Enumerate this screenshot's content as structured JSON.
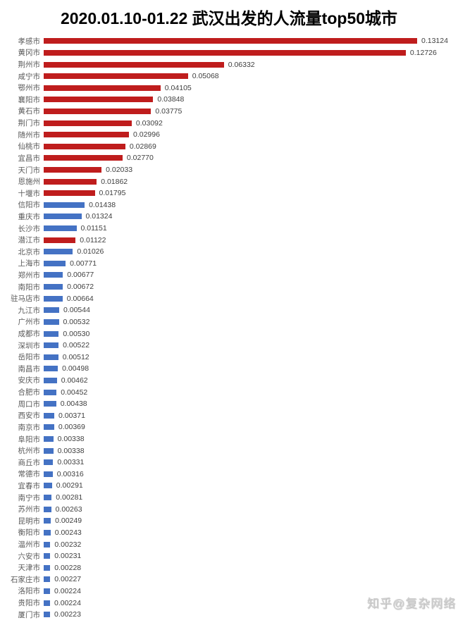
{
  "title": "2020.01.10-01.22 武汉出发的人流量top50城市",
  "watermark": "知乎@复杂网络",
  "colors": {
    "hubei_red": "#bf1d1d",
    "other_blue": "#4472c4",
    "category_label": "#595959",
    "value_label": "#404040",
    "title": "#000000",
    "background": "#ffffff"
  },
  "chart_data": {
    "type": "bar",
    "orientation": "horizontal",
    "title": "2020.01.10-01.22 武汉出发的人流量top50城市",
    "xlabel": "",
    "ylabel": "",
    "xlim": [
      0,
      0.14
    ],
    "grid": false,
    "legend": false,
    "value_decimals": 5,
    "categories": [
      "孝感市",
      "黄冈市",
      "荆州市",
      "咸宁市",
      "鄂州市",
      "襄阳市",
      "黄石市",
      "荆门市",
      "随州市",
      "仙桃市",
      "宜昌市",
      "天门市",
      "恩施州",
      "十堰市",
      "信阳市",
      "重庆市",
      "长沙市",
      "潜江市",
      "北京市",
      "上海市",
      "郑州市",
      "南阳市",
      "驻马店市",
      "九江市",
      "广州市",
      "成都市",
      "深圳市",
      "岳阳市",
      "南昌市",
      "安庆市",
      "合肥市",
      "周口市",
      "西安市",
      "南京市",
      "阜阳市",
      "杭州市",
      "商丘市",
      "常德市",
      "宜春市",
      "南宁市",
      "苏州市",
      "昆明市",
      "衡阳市",
      "温州市",
      "六安市",
      "天津市",
      "石家庄市",
      "洛阳市",
      "贵阳市",
      "厦门市"
    ],
    "values": [
      0.13124,
      0.12726,
      0.06332,
      0.05068,
      0.04105,
      0.03848,
      0.03775,
      0.03092,
      0.02996,
      0.02869,
      0.0277,
      0.02033,
      0.01862,
      0.01795,
      0.01438,
      0.01324,
      0.01151,
      0.01122,
      0.01026,
      0.00771,
      0.00677,
      0.00672,
      0.00664,
      0.00544,
      0.00532,
      0.0053,
      0.00522,
      0.00512,
      0.00498,
      0.00462,
      0.00452,
      0.00438,
      0.00371,
      0.00369,
      0.00338,
      0.00338,
      0.00331,
      0.00316,
      0.00291,
      0.00281,
      0.00263,
      0.00249,
      0.00243,
      0.00232,
      0.00231,
      0.00228,
      0.00227,
      0.00224,
      0.00224,
      0.00223
    ],
    "color_keys": [
      "hubei_red",
      "hubei_red",
      "hubei_red",
      "hubei_red",
      "hubei_red",
      "hubei_red",
      "hubei_red",
      "hubei_red",
      "hubei_red",
      "hubei_red",
      "hubei_red",
      "hubei_red",
      "hubei_red",
      "hubei_red",
      "other_blue",
      "other_blue",
      "other_blue",
      "hubei_red",
      "other_blue",
      "other_blue",
      "other_blue",
      "other_blue",
      "other_blue",
      "other_blue",
      "other_blue",
      "other_blue",
      "other_blue",
      "other_blue",
      "other_blue",
      "other_blue",
      "other_blue",
      "other_blue",
      "other_blue",
      "other_blue",
      "other_blue",
      "other_blue",
      "other_blue",
      "other_blue",
      "other_blue",
      "other_blue",
      "other_blue",
      "other_blue",
      "other_blue",
      "other_blue",
      "other_blue",
      "other_blue",
      "other_blue",
      "other_blue",
      "other_blue",
      "other_blue"
    ]
  }
}
